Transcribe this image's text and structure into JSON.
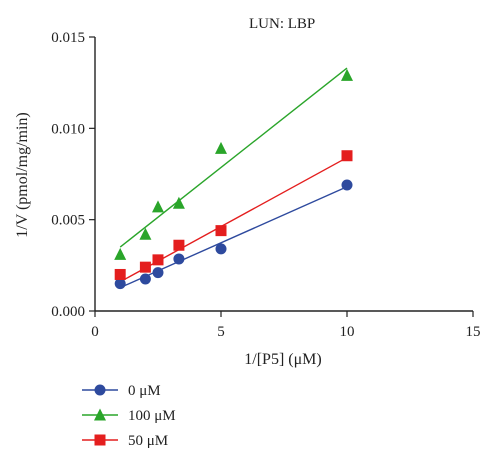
{
  "chart_data": {
    "type": "scatter",
    "title": "LUN: LBP",
    "xlabel": "1/[P5] (μM)",
    "ylabel": "1/V (pmol/mg/min)",
    "xlim": [
      0,
      15
    ],
    "ylim": [
      0,
      0.015
    ],
    "xticks": [
      0,
      5,
      10,
      15
    ],
    "xtick_labels": [
      "0",
      "5",
      "10",
      "15"
    ],
    "yticks": [
      0,
      0.005,
      0.01,
      0.015
    ],
    "ytick_labels": [
      "0.000",
      "0.005",
      "0.010",
      "0.015"
    ],
    "grid": false,
    "legend_position": "bottom-left",
    "series": [
      {
        "name": "0 μM",
        "color": "#2e4a9e",
        "marker": "circle",
        "x": [
          1,
          2,
          2.5,
          3.33,
          5,
          10
        ],
        "y": [
          0.0015,
          0.00175,
          0.0021,
          0.00285,
          0.0034,
          0.0069
        ],
        "fit": [
          [
            1,
            0.00128
          ],
          [
            10,
            0.0068
          ]
        ]
      },
      {
        "name": "100 μM",
        "color": "#2aa52a",
        "marker": "triangle",
        "x": [
          1,
          2,
          2.5,
          3.33,
          5,
          10
        ],
        "y": [
          0.0031,
          0.0042,
          0.0057,
          0.0059,
          0.0089,
          0.0129
        ],
        "fit": [
          [
            1,
            0.0035
          ],
          [
            10,
            0.0133
          ]
        ]
      },
      {
        "name": "50 μM",
        "color": "#e41e1e",
        "marker": "square",
        "x": [
          1,
          2,
          2.5,
          3.33,
          5,
          10
        ],
        "y": [
          0.002,
          0.0024,
          0.0028,
          0.0036,
          0.0044,
          0.0085
        ],
        "fit": [
          [
            1,
            0.0016
          ],
          [
            10,
            0.0084
          ]
        ]
      }
    ]
  }
}
